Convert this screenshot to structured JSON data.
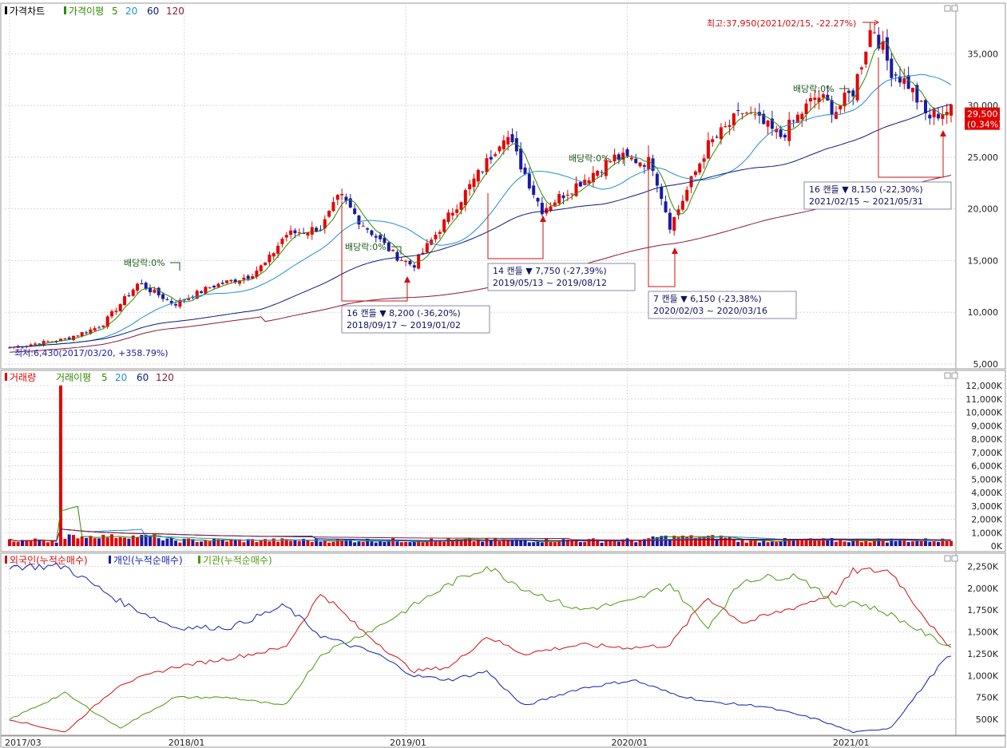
{
  "colors": {
    "up": "#e60000",
    "down": "#1a1aa6",
    "ma5": "#2e8b00",
    "ma20": "#1e8fd0",
    "ma60": "#0a1a80",
    "ma120": "#8b1a3a",
    "foreign": "#d01010",
    "individual": "#1020b0",
    "institution": "#4a9a10",
    "grid": "#d8d8d8",
    "annot": "#d01010"
  },
  "legend": {
    "price": {
      "title": "가격차트",
      "ma_title": "가격이평",
      "p5": "5",
      "p20": "20",
      "p60": "60",
      "p120": "120"
    },
    "volume": {
      "title": "거래량",
      "ma_title": "거래이평",
      "p5": "5",
      "p20": "20",
      "p60": "60",
      "p120": "120"
    },
    "investor": {
      "foreign": "외국인(누적순매수)",
      "individual": "개인(누적순매수)",
      "institution": "기관(누적순매수)"
    }
  },
  "price_axis": {
    "ticks": [
      "35,000",
      "30,000",
      "25,000",
      "20,000",
      "15,000",
      "10,000",
      "5,000"
    ],
    "tick_values": [
      35000,
      30000,
      25000,
      20000,
      15000,
      10000,
      5000
    ],
    "min": 5000,
    "max": 38500
  },
  "volume_axis": {
    "ticks": [
      "12,000K",
      "11,000K",
      "10,000K",
      "9,000K",
      "8,000K",
      "7,000K",
      "6,000K",
      "5,000K",
      "4,000K",
      "3,000K",
      "2,000K",
      "1,000K",
      "0K"
    ],
    "tick_values": [
      12000,
      11000,
      10000,
      9000,
      8000,
      7000,
      6000,
      5000,
      4000,
      3000,
      2000,
      1000,
      0
    ]
  },
  "investor_axis": {
    "ticks": [
      "2,250K",
      "2,000K",
      "1,750K",
      "1,500K",
      "1,250K",
      "1,000K",
      "750K",
      "500K"
    ],
    "tick_values": [
      2250,
      2000,
      1750,
      1500,
      1250,
      1000,
      750,
      500
    ]
  },
  "x_axis": {
    "labels": [
      "2017/03",
      "2018/01",
      "2019/01",
      "2020/01",
      "2021/01"
    ],
    "label_weeks": [
      0,
      41,
      93,
      145,
      197
    ]
  },
  "current_price": {
    "price": "29,500",
    "change": "(0.34%)",
    "value": 29500
  },
  "annotations": {
    "high": "최고:37,950(2021/02/15, -22.27%)",
    "low": "최저:6,430(2017/03/20, +358.79%)",
    "dividends": [
      "배당락:0%",
      "배당락:0%",
      "배당락:0%",
      "배당락:0%"
    ],
    "drops": [
      {
        "line1": "16 캔들  ▼ 8,200 (-36,20%)",
        "line2": "2018/09/17 ~ 2019/01/02"
      },
      {
        "line1": "14 캔들  ▼ 7,750 (-27,39%)",
        "line2": "2019/05/13 ~ 2019/08/12"
      },
      {
        "line1": "7 캔들  ▼ 6,150 (-23,38%)",
        "line2": "2020/02/03 ~ 2020/03/16"
      },
      {
        "line1": "16 캔들  ▼ 8,150 (-22,30%)",
        "line2": "2021/02/15 ~ 2021/05/31"
      }
    ]
  },
  "chart_data": {
    "type": "line",
    "title": "",
    "x_unit": "weekly candles",
    "price_close_keypoints": [
      [
        "2017/03/20",
        6600
      ],
      [
        "2017/06",
        7400
      ],
      [
        "2017/08",
        8700
      ],
      [
        "2017/10",
        12800
      ],
      [
        "2017/12",
        10800
      ],
      [
        "2018/02",
        12500
      ],
      [
        "2018/04",
        13500
      ],
      [
        "2018/05",
        14800
      ],
      [
        "2018/06",
        17500
      ],
      [
        "2018/08",
        18200
      ],
      [
        "2018/09",
        21300
      ],
      [
        "2018/10",
        19000
      ],
      [
        "2018/12",
        15500
      ],
      [
        "2019/01",
        14500
      ],
      [
        "2019/03",
        19500
      ],
      [
        "2019/05",
        24500
      ],
      [
        "2019/06",
        27500
      ],
      [
        "2019/08",
        19900
      ],
      [
        "2019/10",
        22500
      ],
      [
        "2019/12",
        25000
      ],
      [
        "2020/02",
        24500
      ],
      [
        "2020/03",
        18300
      ],
      [
        "2020/05",
        26000
      ],
      [
        "2020/07",
        29500
      ],
      [
        "2020/09",
        27000
      ],
      [
        "2020/11",
        31000
      ],
      [
        "2020/12",
        29500
      ],
      [
        "2021/01",
        31500
      ],
      [
        "2021/02",
        37950
      ],
      [
        "2021/03",
        33500
      ],
      [
        "2021/04",
        32000
      ],
      [
        "2021/05",
        28800
      ],
      [
        "2021/06",
        29500
      ]
    ],
    "volume_K_peak": {
      "date": "2017/05",
      "value": 12000
    },
    "investor_cumulative_K": {
      "foreign": [
        [
          "2017/03",
          500
        ],
        [
          "2017/06",
          350
        ],
        [
          "2017/09",
          900
        ],
        [
          "2017/12",
          1100
        ],
        [
          "2018/03",
          1200
        ],
        [
          "2018/06",
          1320
        ],
        [
          "2018/08",
          1950
        ],
        [
          "2018/10",
          1550
        ],
        [
          "2019/01",
          1050
        ],
        [
          "2019/03",
          1100
        ],
        [
          "2019/05",
          1450
        ],
        [
          "2019/07",
          1250
        ],
        [
          "2019/10",
          1350
        ],
        [
          "2020/01",
          1320
        ],
        [
          "2020/03",
          1350
        ],
        [
          "2020/05",
          1900
        ],
        [
          "2020/07",
          1600
        ],
        [
          "2020/10",
          1800
        ],
        [
          "2020/12",
          1950
        ],
        [
          "2021/01",
          2200
        ],
        [
          "2021/03",
          2200
        ],
        [
          "2021/06",
          1350
        ]
      ],
      "individual": [
        [
          "2017/03",
          2250
        ],
        [
          "2017/06",
          2250
        ],
        [
          "2017/09",
          1850
        ],
        [
          "2017/12",
          1550
        ],
        [
          "2018/03",
          1550
        ],
        [
          "2018/06",
          1800
        ],
        [
          "2018/08",
          1450
        ],
        [
          "2018/11",
          1250
        ],
        [
          "2019/01",
          1000
        ],
        [
          "2019/03",
          950
        ],
        [
          "2019/05",
          1050
        ],
        [
          "2019/07",
          650
        ],
        [
          "2019/10",
          850
        ],
        [
          "2020/01",
          950
        ],
        [
          "2020/03",
          800
        ],
        [
          "2020/05",
          700
        ],
        [
          "2020/08",
          650
        ],
        [
          "2020/11",
          500
        ],
        [
          "2021/01",
          350
        ],
        [
          "2021/03",
          400
        ],
        [
          "2021/06",
          1200
        ]
      ],
      "institution": [
        [
          "2017/03",
          500
        ],
        [
          "2017/06",
          800
        ],
        [
          "2017/09",
          400
        ],
        [
          "2017/12",
          750
        ],
        [
          "2018/03",
          750
        ],
        [
          "2018/06",
          650
        ],
        [
          "2018/08",
          1250
        ],
        [
          "2018/11",
          1550
        ],
        [
          "2019/01",
          1800
        ],
        [
          "2019/03",
          2050
        ],
        [
          "2019/05",
          2250
        ],
        [
          "2019/07",
          2000
        ],
        [
          "2019/10",
          1750
        ],
        [
          "2020/01",
          1850
        ],
        [
          "2020/03",
          2050
        ],
        [
          "2020/05",
          1550
        ],
        [
          "2020/07",
          2100
        ],
        [
          "2020/10",
          2150
        ],
        [
          "2020/12",
          1800
        ],
        [
          "2021/01",
          1850
        ],
        [
          "2021/03",
          1700
        ],
        [
          "2021/06",
          1350
        ]
      ]
    }
  }
}
